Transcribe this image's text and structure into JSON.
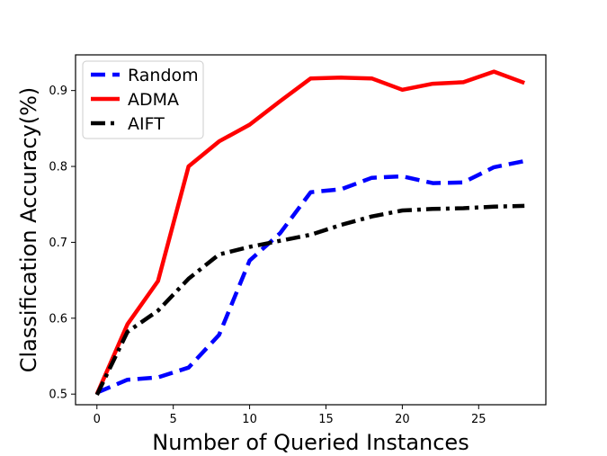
{
  "chart_data": {
    "type": "line",
    "title": "",
    "xlabel": "Number of Queried Instances",
    "ylabel": "Classification Accuracy(%)",
    "xlim": [
      -1.4,
      29.4
    ],
    "ylim": [
      0.486,
      0.947
    ],
    "xticks": [
      0,
      5,
      10,
      15,
      20,
      25
    ],
    "yticks": [
      0.5,
      0.6,
      0.7,
      0.8,
      0.9
    ],
    "ytick_labels": [
      "0.5",
      "0.6",
      "0.7",
      "0.8",
      "0.9"
    ],
    "grid": false,
    "legend_position": "upper-left",
    "x": [
      0,
      2,
      4,
      6,
      8,
      10,
      12,
      14,
      16,
      18,
      20,
      22,
      24,
      26,
      28
    ],
    "series": [
      {
        "name": "Random",
        "color": "#0000ff",
        "style": "dashed",
        "values": [
          0.502,
          0.519,
          0.522,
          0.535,
          0.578,
          0.676,
          0.712,
          0.766,
          0.77,
          0.785,
          0.787,
          0.778,
          0.779,
          0.799,
          0.807
        ]
      },
      {
        "name": "ADMA",
        "color": "#ff0000",
        "style": "solid",
        "values": [
          0.5,
          0.592,
          0.649,
          0.8,
          0.833,
          0.855,
          0.886,
          0.916,
          0.917,
          0.916,
          0.901,
          0.909,
          0.911,
          0.925,
          0.91
        ]
      },
      {
        "name": "AIFT",
        "color": "#000000",
        "style": "dashdot",
        "values": [
          0.499,
          0.582,
          0.61,
          0.652,
          0.684,
          0.694,
          0.702,
          0.71,
          0.723,
          0.734,
          0.742,
          0.744,
          0.745,
          0.747,
          0.748
        ]
      }
    ]
  }
}
